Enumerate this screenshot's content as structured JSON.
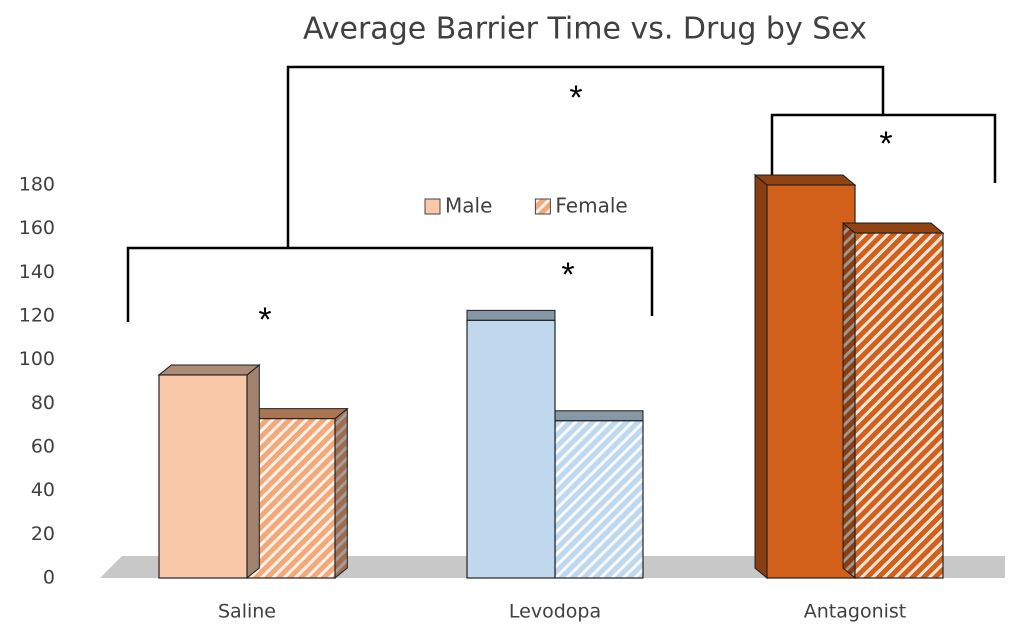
{
  "chart_data": {
    "type": "bar3d",
    "title": "Average Barrier Time vs. Drug by Sex",
    "categories": [
      "Saline",
      "Levodopa",
      "Antagonist"
    ],
    "series": [
      {
        "name": "Male",
        "color": "#f8c8a8",
        "colors": [
          "#f8c8a8",
          "#c0d8ee",
          "#d2601a"
        ],
        "values": [
          93,
          118,
          180
        ]
      },
      {
        "name": "Female",
        "color": "#f4a878",
        "colors": [
          "#f4a878",
          "#c0d8ee",
          "#d2601a"
        ],
        "pattern": "hatch",
        "values": [
          73,
          72,
          158
        ]
      }
    ],
    "ylim": [
      0,
      180
    ],
    "yticks": [
      0,
      20,
      40,
      60,
      80,
      100,
      120,
      140,
      160,
      180
    ],
    "grid": false,
    "legend": "top",
    "annotations": [
      "*",
      "*",
      "*",
      "*"
    ]
  }
}
